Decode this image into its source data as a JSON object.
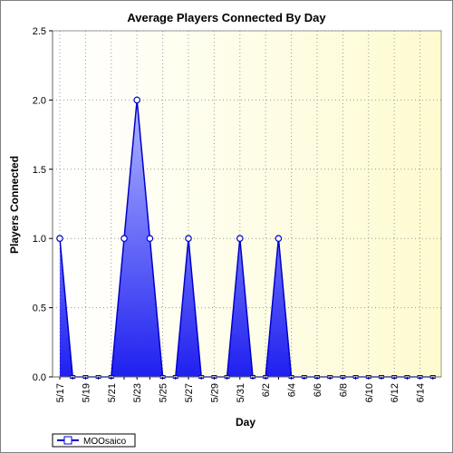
{
  "chart_data": {
    "type": "area",
    "title": "Average Players Connected By Day",
    "xlabel": "Day",
    "ylabel": "Players Connected",
    "ylim": [
      0,
      2.5
    ],
    "yticks": [
      "0.0",
      "0.5",
      "1.0",
      "1.5",
      "2.0",
      "2.5"
    ],
    "x": [
      "5/17",
      "5/18",
      "5/19",
      "5/20",
      "5/21",
      "5/22",
      "5/23",
      "5/24",
      "5/25",
      "5/26",
      "5/27",
      "5/28",
      "5/29",
      "5/30",
      "5/31",
      "6/1",
      "6/2",
      "6/3",
      "6/4",
      "6/5",
      "6/6",
      "6/7",
      "6/8",
      "6/9",
      "6/10",
      "6/11",
      "6/12",
      "6/13",
      "6/14",
      "6/15"
    ],
    "xtick_labels": [
      "5/17",
      "5/19",
      "5/21",
      "5/23",
      "5/25",
      "5/27",
      "5/29",
      "5/31",
      "6/2",
      "6/4",
      "6/6",
      "6/8",
      "6/10",
      "6/12",
      "6/14"
    ],
    "series": [
      {
        "name": "MOOsaico",
        "values": [
          1,
          0,
          0,
          0,
          0,
          1,
          2,
          1,
          0,
          0,
          1,
          0,
          0,
          0,
          1,
          0,
          0,
          1,
          0,
          0,
          0,
          0,
          0,
          0,
          0,
          0,
          0,
          0,
          0,
          0
        ]
      }
    ],
    "grid": true,
    "legend": "bottom-left",
    "colors": {
      "line": "#0000cc",
      "fill_light": "#b0b8ff",
      "fill_dark": "#2020f0",
      "background_light": "#ffffff",
      "background_warm": "#fefbd0"
    }
  }
}
